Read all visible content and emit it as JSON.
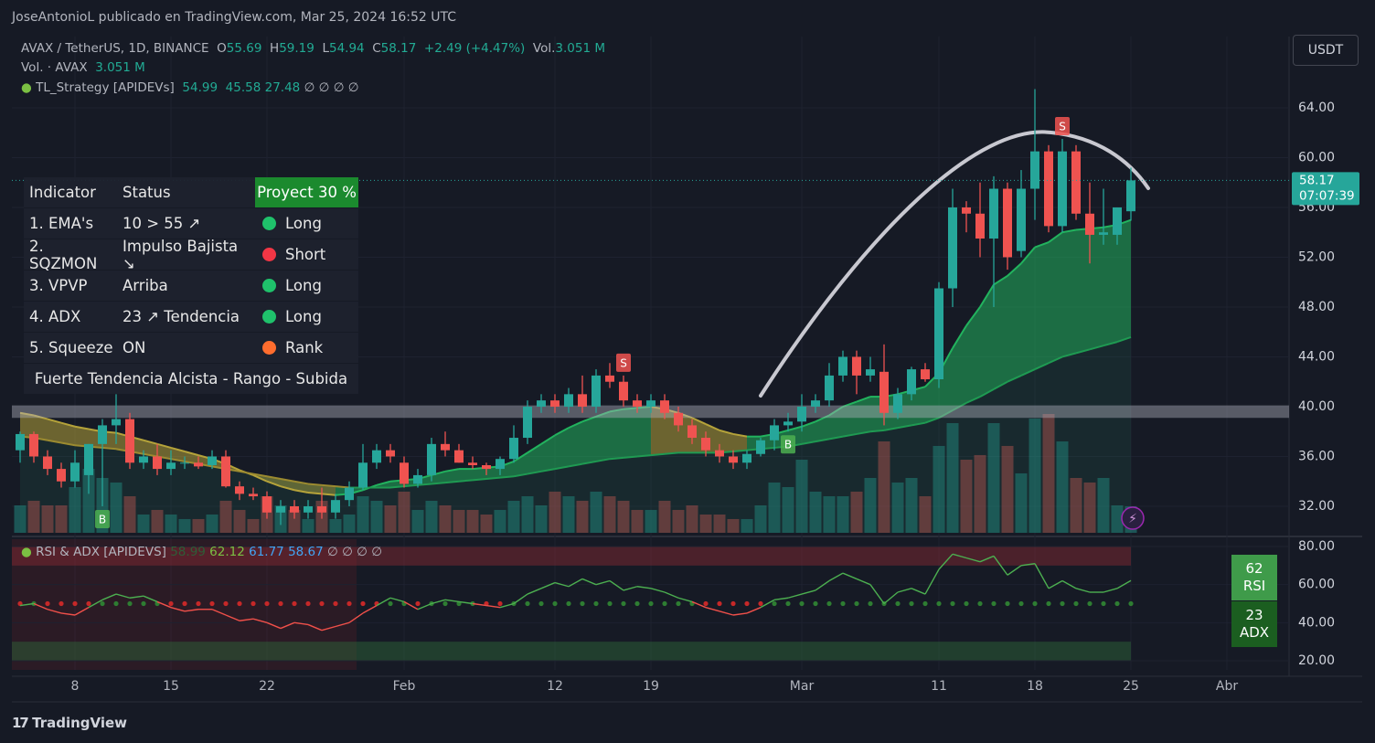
{
  "header": {
    "publisher": "JoseAntonioL publicado en TradingView.com, Mar 25, 2024 16:52 UTC",
    "symbol": "AVAX / TetherUS, 1D, BINANCE",
    "o_label": "O",
    "h_label": "H",
    "l_label": "L",
    "c_label": "C",
    "change": "+2.49 (+4.47%)",
    "vol_label": "Vol.",
    "vol_value": "3.051 M",
    "vol_legend": "Vol. · AVAX",
    "vol_legend_value": "3.051 M",
    "strategy": "TL_Strategy [APIDEVs]",
    "strategy_extra": [
      27.48,
      "∅",
      "∅",
      "∅",
      "∅"
    ],
    "currency": "USDT",
    "countdown": "07:07:39",
    "footer_logo": "TradingView"
  },
  "table": {
    "headers": [
      "Indicator",
      "Status",
      "Proyect 30 %"
    ],
    "rows": [
      {
        "indicator": "1. EMA's",
        "status": "10 > 55 ↗",
        "signal": "Long",
        "color": "#1fc16b"
      },
      {
        "indicator": "2. SQZMON",
        "status": "Impulso Bajista ↘",
        "signal": "Short",
        "color": "#f23645"
      },
      {
        "indicator": "3. VPVP",
        "status": "Arriba",
        "signal": "Long",
        "color": "#1fc16b"
      },
      {
        "indicator": "4. ADX",
        "status": "23 ↗ Tendencia",
        "signal": "Long",
        "color": "#1fc16b"
      },
      {
        "indicator": "5. Squeeze",
        "status": "ON",
        "signal": "Rank",
        "color": "#ff6d2e"
      }
    ],
    "footer": "Fuerte Tendencia Alcista - Rango - Subida"
  },
  "chart_data": [
    {
      "type": "candlestick",
      "categories": [
        null,
        null,
        null,
        null,
        "8",
        null,
        null,
        null,
        null,
        null,
        null,
        "15",
        null,
        null,
        null,
        null,
        null,
        null,
        "22",
        null,
        null,
        null,
        null,
        null,
        null,
        null,
        null,
        null,
        "Feb",
        null,
        null,
        null,
        null,
        null,
        null,
        null,
        null,
        null,
        null,
        "12",
        null,
        null,
        null,
        null,
        null,
        null,
        "19",
        null,
        null,
        null,
        null,
        null,
        null,
        null,
        null,
        null,
        null,
        "Mar",
        null,
        null,
        null,
        null,
        null,
        null,
        null,
        null,
        null,
        "11",
        null,
        null,
        null,
        null,
        null,
        null,
        "18",
        null,
        null,
        null,
        null,
        null,
        null,
        "25",
        null,
        null,
        null,
        null,
        null,
        null,
        "Abr"
      ],
      "open": [
        36.5,
        37.8,
        36,
        35,
        34,
        34.5,
        37,
        38.5,
        39,
        35.5,
        36,
        35,
        35.5,
        35.5,
        35.3,
        36,
        33.6,
        33,
        32.8,
        31.5,
        32,
        31.5,
        32,
        31.5,
        32.5,
        33.5,
        35.5,
        36.5,
        35.5,
        33.8,
        34.5,
        37,
        36.5,
        35.5,
        35.3,
        35,
        35.8,
        37.5,
        40,
        40.5,
        40,
        41,
        40,
        42.5,
        42,
        40.5,
        40,
        40.5,
        39.5,
        38.5,
        37.5,
        36.5,
        36,
        35.5,
        36.2,
        37.3,
        38.5,
        38.8,
        40,
        40.5,
        42.5,
        44,
        42.5,
        42.8,
        39.5,
        41,
        43,
        42.2,
        49.5,
        56,
        55.5,
        53.5,
        57.5,
        52.5,
        57.5,
        60.5,
        54.5,
        60.5,
        55.5,
        53.8,
        53.8,
        55.69,
        null,
        null,
        null,
        null,
        null,
        null,
        null
      ],
      "high": [
        38,
        38,
        36.5,
        35.5,
        36.5,
        37,
        39,
        41,
        39.5,
        36.5,
        37,
        36.5,
        36,
        36,
        36.5,
        36.5,
        34,
        33.5,
        33.2,
        32.5,
        32.5,
        32.5,
        33.5,
        33,
        34,
        37,
        37,
        37,
        36,
        35,
        37.5,
        38,
        37,
        36,
        35.5,
        36,
        38.5,
        40.5,
        41,
        41,
        41.5,
        42.5,
        43,
        43.5,
        42.5,
        41,
        41,
        41,
        40,
        39,
        38,
        37,
        36.5,
        36.5,
        37.5,
        39,
        39.5,
        41,
        41,
        43.5,
        44.5,
        44.5,
        44,
        45,
        41.5,
        43.2,
        43.5,
        50,
        57.5,
        56.5,
        58,
        58.5,
        58,
        59,
        65.5,
        61,
        61.5,
        61,
        58,
        57.5,
        56,
        59.19,
        null,
        null,
        null,
        null,
        null,
        null,
        null
      ],
      "low": [
        35.5,
        35.5,
        34.5,
        33.5,
        33.5,
        33,
        32,
        37,
        35,
        35,
        34.5,
        34.5,
        35,
        35,
        35,
        33.5,
        32.5,
        32.5,
        31,
        30.5,
        31,
        31,
        31,
        31,
        32,
        33.3,
        35,
        35.5,
        33.5,
        33.5,
        34,
        36,
        35.5,
        35,
        34.5,
        34.5,
        35.5,
        37,
        39.5,
        39.5,
        39.5,
        39.5,
        39.5,
        41.5,
        40,
        39.5,
        39.5,
        39,
        38,
        37,
        36,
        35.5,
        35,
        35,
        36,
        36.5,
        38,
        38,
        39.5,
        40,
        42,
        41,
        42,
        38.5,
        39,
        40.5,
        42,
        41.5,
        48,
        54,
        52,
        48,
        51,
        52,
        55,
        54,
        54,
        55,
        51.5,
        53,
        53,
        54.94,
        null,
        null,
        null,
        null,
        null,
        null,
        null
      ],
      "close": [
        37.8,
        36,
        35,
        34,
        35.5,
        37,
        38.5,
        39,
        35.5,
        36,
        35,
        35.5,
        35.5,
        35.2,
        36,
        33.6,
        33,
        32.8,
        31.5,
        32,
        31.5,
        32,
        31.5,
        32.5,
        33.5,
        35.5,
        36.5,
        36,
        33.8,
        34.5,
        37,
        36.5,
        35.5,
        35.3,
        35,
        35.8,
        37.5,
        40,
        40.5,
        40,
        41,
        40,
        42.5,
        42,
        40.5,
        40,
        40.5,
        39.5,
        38.5,
        37.5,
        36.5,
        36,
        35.5,
        36.2,
        37.3,
        38.5,
        38.8,
        40,
        40.5,
        42.5,
        44,
        42.5,
        43,
        39.5,
        41,
        43,
        42.2,
        49.5,
        56,
        55.5,
        53.5,
        57.5,
        52,
        57.5,
        60.5,
        54.5,
        60.5,
        55.5,
        53.8,
        54,
        56,
        58.17,
        null,
        null,
        null,
        null,
        null,
        null,
        null
      ],
      "volume": [
        3.15,
        3.68,
        3.15,
        3.15,
        5.25,
        7.35,
        6.3,
        5.78,
        4.2,
        2.1,
        2.63,
        2.1,
        1.58,
        1.58,
        2.1,
        3.68,
        2.63,
        1.58,
        4.2,
        3.15,
        2.63,
        1.58,
        3.68,
        1.58,
        2.1,
        4.2,
        3.68,
        3.15,
        4.73,
        2.63,
        3.68,
        3.15,
        2.63,
        2.63,
        2.1,
        2.63,
        3.68,
        4.2,
        3.15,
        4.73,
        4.2,
        3.68,
        4.73,
        4.2,
        3.68,
        2.63,
        2.63,
        3.68,
        2.63,
        3.15,
        2.1,
        2.1,
        1.58,
        1.58,
        3.15,
        5.78,
        5.25,
        8.4,
        4.73,
        4.2,
        4.2,
        4.73,
        6.3,
        10.5,
        5.78,
        6.3,
        4.2,
        9.98,
        12.6,
        8.4,
        8.93,
        12.6,
        9.98,
        6.83,
        13.13,
        13.65,
        10.5,
        6.3,
        5.78,
        6.3,
        3.15,
        3.051,
        null,
        null,
        null,
        null,
        null,
        null,
        null
      ],
      "bands": [
        {
          "color": "#22b35e",
          "alt_color": "#b5a33a",
          "values": [
            39.5,
            39.3,
            39,
            38.7,
            38.4,
            38.2,
            38,
            37.9,
            37.6,
            37.3,
            37,
            36.7,
            36.4,
            36.1,
            35.8,
            35.4,
            34.9,
            34.5,
            34,
            33.6,
            33.3,
            33.1,
            33,
            32.9,
            33,
            33.3,
            33.7,
            34,
            34.1,
            34.2,
            34.5,
            34.8,
            35,
            35,
            35.1,
            35.2,
            35.6,
            36.3,
            37,
            37.7,
            38.3,
            38.8,
            39.2,
            39.6,
            39.8,
            39.9,
            40,
            39.8,
            39.5,
            39.1,
            38.6,
            38.1,
            37.8,
            37.6,
            37.6,
            37.8,
            38.1,
            38.4,
            38.8,
            39.3,
            40,
            40.4,
            40.8,
            40.8,
            41,
            41.3,
            41.6,
            42.7,
            44.7,
            46.5,
            48,
            49.8,
            50.5,
            51.5,
            52.8,
            53.2,
            54,
            54.2,
            54.3,
            54.4,
            54.6,
            54.99,
            null,
            null,
            null,
            null,
            null,
            null,
            null
          ]
        },
        {
          "color": "#1f9a52",
          "alt_color": "#9c8b30",
          "values": [
            37.6,
            37.5,
            37.3,
            37.1,
            36.9,
            36.8,
            36.7,
            36.6,
            36.4,
            36.2,
            36,
            35.8,
            35.6,
            35.4,
            35.2,
            35,
            34.8,
            34.6,
            34.4,
            34.2,
            34,
            33.8,
            33.7,
            33.6,
            33.5,
            33.5,
            33.5,
            33.5,
            33.6,
            33.7,
            33.8,
            33.9,
            34,
            34.1,
            34.2,
            34.3,
            34.4,
            34.6,
            34.8,
            35,
            35.2,
            35.4,
            35.6,
            35.8,
            35.9,
            36,
            36.1,
            36.2,
            36.3,
            36.3,
            36.3,
            36.3,
            36.4,
            36.5,
            36.6,
            36.7,
            36.8,
            37,
            37.2,
            37.4,
            37.6,
            37.8,
            38,
            38.1,
            38.3,
            38.5,
            38.7,
            39.1,
            39.7,
            40.3,
            40.8,
            41.4,
            42,
            42.5,
            43,
            43.5,
            44,
            44.3,
            44.6,
            44.9,
            45.2,
            45.58,
            null,
            null,
            null,
            null,
            null,
            null,
            null
          ]
        }
      ],
      "up_color": "#26a69a",
      "down_color": "#ef5350",
      "zone": [
        39.1,
        40.1
      ],
      "signals": [
        {
          "index": 6,
          "label": "B",
          "side": "below"
        },
        {
          "index": 44,
          "label": "S",
          "side": "above"
        },
        {
          "index": 56,
          "label": "B",
          "side": "below"
        },
        {
          "index": 76,
          "label": "S",
          "side": "above"
        }
      ],
      "ylim": [
        29.87,
        69.72
      ],
      "yticks": [
        {
          "value": 32,
          "label": "32.00"
        },
        {
          "value": 36,
          "label": "36.00"
        },
        {
          "value": 40,
          "label": "40.00"
        },
        {
          "value": 44,
          "label": "44.00"
        },
        {
          "value": 48,
          "label": "48.00"
        },
        {
          "value": 52,
          "label": "52.00"
        },
        {
          "value": 56,
          "label": "56.00"
        },
        {
          "value": 60,
          "label": "60.00"
        },
        {
          "value": 64,
          "label": "64.00"
        }
      ],
      "grid": true
    },
    {
      "type": "line",
      "title": "RSI & ADX [APIDEVS]",
      "legend_values": [
        58.99,
        62.12,
        61.77,
        58.67,
        "∅",
        "∅",
        "∅",
        "∅"
      ],
      "values": [
        49,
        50,
        47,
        45,
        44,
        48,
        52,
        55,
        53,
        54,
        51,
        48,
        46,
        47,
        47,
        44,
        41,
        42,
        40,
        37,
        40,
        39,
        36,
        38,
        40,
        45,
        49,
        53,
        51,
        47,
        50,
        52,
        51,
        50,
        49,
        48,
        50,
        55,
        58,
        61,
        59,
        63,
        60,
        62,
        57,
        59,
        58,
        56,
        53,
        51,
        48,
        46,
        44,
        45,
        48,
        52,
        53,
        55,
        57,
        62,
        66,
        63,
        60,
        50,
        56,
        58,
        55,
        68,
        76,
        74,
        72,
        75,
        65,
        70,
        71,
        58,
        62,
        58,
        56,
        56,
        58,
        62.12,
        null,
        null,
        null,
        null,
        null,
        null,
        null
      ],
      "up_color": "#4caf50",
      "down_color": "#f0504a",
      "signal_line": 50,
      "bands": [
        [
          70,
          80
        ],
        [
          20,
          30
        ]
      ],
      "badges": [
        {
          "value": 62,
          "label": "RSI"
        },
        {
          "value": 23,
          "label": "ADX"
        }
      ],
      "ylim": [
        15.2,
        83.84
      ],
      "yticks": [
        {
          "value": 20,
          "label": "20.00"
        },
        {
          "value": 40,
          "label": "40.00"
        },
        {
          "value": 60,
          "label": "60.00"
        },
        {
          "value": 80,
          "label": "80.00"
        }
      ]
    }
  ]
}
